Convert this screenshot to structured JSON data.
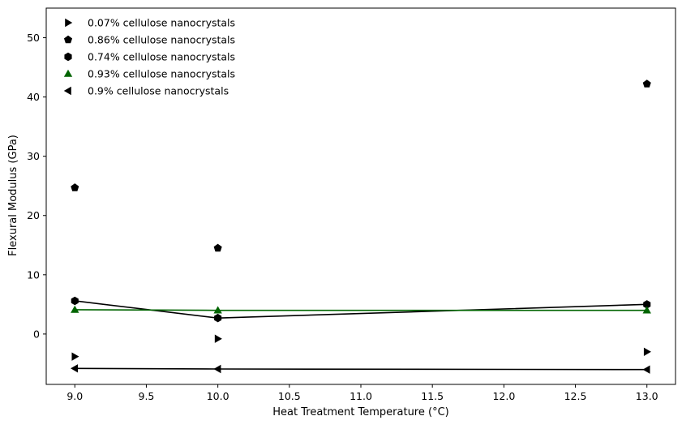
{
  "chart_data": {
    "type": "line",
    "xlabel": "Heat Treatment Temperature (°C)",
    "ylabel": "Flexural Modulus (GPa)",
    "xlim": [
      8.8,
      13.2
    ],
    "ylim": [
      -8.5,
      55
    ],
    "xticks": [
      9.0,
      9.5,
      10.0,
      10.5,
      11.0,
      11.5,
      12.0,
      12.5,
      13.0
    ],
    "xtick_labels": [
      "9.0",
      "9.5",
      "10.0",
      "10.5",
      "11.0",
      "11.5",
      "12.0",
      "12.5",
      "13.0"
    ],
    "yticks": [
      0,
      10,
      20,
      30,
      40,
      50
    ],
    "ytick_labels": [
      "0",
      "10",
      "20",
      "30",
      "40",
      "50"
    ],
    "grid": false,
    "legend_position": "top-left",
    "x": [
      9,
      10,
      13
    ],
    "series": [
      {
        "name": "0.07% cellulose nanocrystals",
        "marker": "triangle-right",
        "connected": false,
        "color": "#000000",
        "values": [
          -3.8,
          -0.8,
          -3.0
        ]
      },
      {
        "name": "0.86% cellulose nanocrystals",
        "marker": "pentagon",
        "connected": false,
        "color": "#000000",
        "values": [
          24.7,
          14.5,
          42.2
        ]
      },
      {
        "name": "0.74% cellulose nanocrystals",
        "marker": "hexagon",
        "connected": true,
        "color": "#000000",
        "values": [
          5.6,
          2.7,
          5.0
        ]
      },
      {
        "name": "0.93% cellulose nanocrystals",
        "marker": "triangle-up",
        "connected": true,
        "color": "#006400",
        "values": [
          4.1,
          4.0,
          4.0
        ]
      },
      {
        "name": "0.9% cellulose nanocrystals",
        "marker": "triangle-left",
        "connected": true,
        "color": "#000000",
        "values": [
          -5.8,
          -5.9,
          -6.0
        ]
      }
    ]
  }
}
